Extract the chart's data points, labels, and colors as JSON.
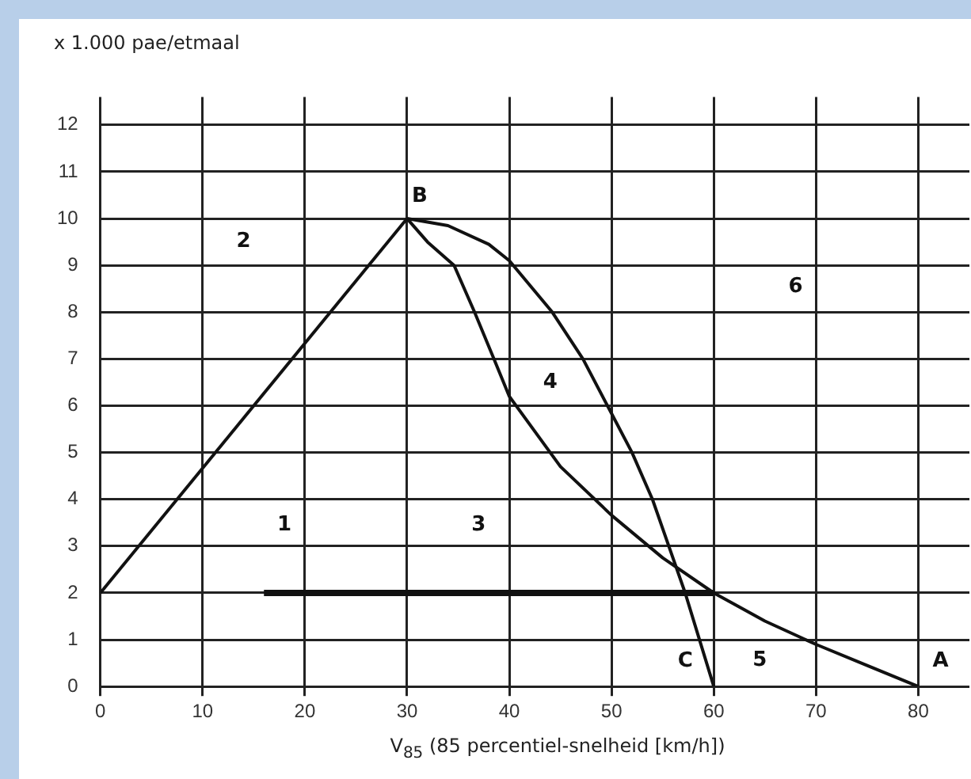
{
  "chart_data": {
    "type": "line",
    "ylabel": "x 1.000 pae/etmaal",
    "xlabel": "V$_{85}$ (85 percentiel-snelheid [km/h])",
    "xlim": [
      0,
      85
    ],
    "xticks": [
      0,
      10,
      20,
      30,
      40,
      50,
      60,
      70,
      80
    ],
    "ylim": [
      0,
      12.6
    ],
    "yticks": [
      0,
      1,
      2,
      3,
      4,
      5,
      6,
      7,
      8,
      9,
      10,
      11,
      12
    ],
    "grid": true,
    "legend": false,
    "marker": "none",
    "line_style": "solid",
    "series": [
      {
        "color": "#111111",
        "x": [
          0,
          30
        ],
        "values": [
          2,
          10
        ]
      },
      {
        "color": "#111111",
        "x": [
          30,
          34,
          38,
          40,
          44.2,
          47.2,
          49.6,
          52,
          54,
          55.6,
          57.2,
          58.6,
          60
        ],
        "values": [
          10,
          9.85,
          9.45,
          9.1,
          8,
          7,
          6,
          5,
          4,
          3,
          2,
          1,
          0
        ]
      },
      {
        "color": "#111111",
        "x": [
          30,
          32,
          34.6,
          36.6,
          38.5,
          40,
          45,
          50,
          55,
          60,
          65,
          70,
          75,
          80
        ],
        "values": [
          10,
          9.5,
          9,
          8,
          7,
          6.2,
          4.7,
          3.66,
          2.75,
          2,
          1.4,
          0.9,
          0.45,
          0
        ]
      },
      {
        "color": "#111111",
        "x": [
          16,
          60
        ],
        "values": [
          2,
          2
        ]
      }
    ],
    "annotations": [
      "1",
      "2",
      "3",
      "4",
      "5",
      "6",
      {
        "text": "B",
        "x": 30,
        "y": 10
      },
      {
        "text": "C",
        "x": 60,
        "y": 0
      },
      {
        "text": "A",
        "x": 80,
        "y": 0
      }
    ]
  }
}
